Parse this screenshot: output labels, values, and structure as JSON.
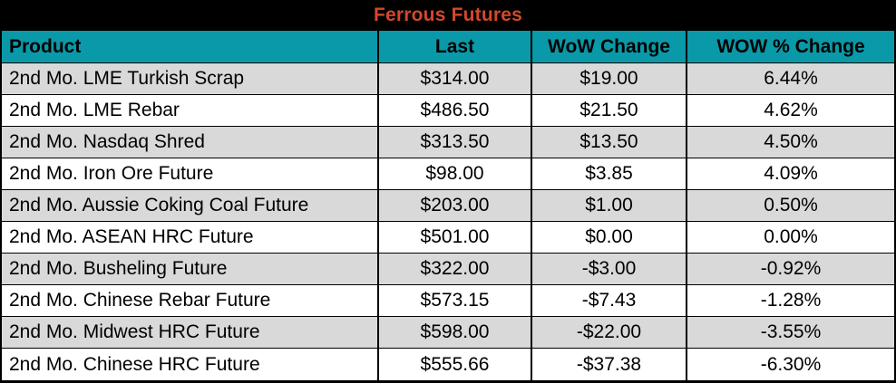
{
  "title": "Ferrous Futures",
  "colors": {
    "title_bar_bg": "#000000",
    "title_text": "#d2492b",
    "header_bg": "#0999a8",
    "row_stripe": "#d9d9d9",
    "row_plain": "#ffffff",
    "border": "#000000"
  },
  "table": {
    "headers": [
      "Product",
      "Last",
      "WoW Change",
      "WOW % Change"
    ],
    "rows": [
      {
        "product": "2nd Mo. LME Turkish Scrap",
        "last": "$314.00",
        "wow_change": "$19.00",
        "wow_pct_change": "6.44%"
      },
      {
        "product": "2nd Mo. LME Rebar",
        "last": "$486.50",
        "wow_change": "$21.50",
        "wow_pct_change": "4.62%"
      },
      {
        "product": "2nd Mo. Nasdaq Shred",
        "last": "$313.50",
        "wow_change": "$13.50",
        "wow_pct_change": "4.50%"
      },
      {
        "product": "2nd Mo. Iron Ore Future",
        "last": "$98.00",
        "wow_change": "$3.85",
        "wow_pct_change": "4.09%"
      },
      {
        "product": "2nd Mo. Aussie Coking Coal Future",
        "last": "$203.00",
        "wow_change": "$1.00",
        "wow_pct_change": "0.50%"
      },
      {
        "product": "2nd Mo. ASEAN HRC Future",
        "last": "$501.00",
        "wow_change": "$0.00",
        "wow_pct_change": "0.00%"
      },
      {
        "product": "2nd Mo. Busheling Future",
        "last": "$322.00",
        "wow_change": "-$3.00",
        "wow_pct_change": "-0.92%"
      },
      {
        "product": "2nd Mo. Chinese Rebar Future",
        "last": "$573.15",
        "wow_change": "-$7.43",
        "wow_pct_change": "-1.28%"
      },
      {
        "product": "2nd Mo. Midwest HRC Future",
        "last": "$598.00",
        "wow_change": "-$22.00",
        "wow_pct_change": "-3.55%"
      },
      {
        "product": "2nd Mo. Chinese HRC Future",
        "last": "$555.66",
        "wow_change": "-$37.38",
        "wow_pct_change": "-6.30%"
      }
    ]
  },
  "chart_data": {
    "type": "table",
    "title": "Ferrous Futures",
    "columns": [
      "Product",
      "Last",
      "WoW Change",
      "WOW % Change"
    ],
    "rows": [
      [
        "2nd Mo. LME Turkish Scrap",
        314.0,
        19.0,
        6.44
      ],
      [
        "2nd Mo. LME Rebar",
        486.5,
        21.5,
        4.62
      ],
      [
        "2nd Mo. Nasdaq Shred",
        313.5,
        13.5,
        4.5
      ],
      [
        "2nd Mo. Iron Ore Future",
        98.0,
        3.85,
        4.09
      ],
      [
        "2nd Mo. Aussie Coking Coal Future",
        203.0,
        1.0,
        0.5
      ],
      [
        "2nd Mo. ASEAN HRC Future",
        501.0,
        0.0,
        0.0
      ],
      [
        "2nd Mo. Busheling Future",
        322.0,
        -3.0,
        -0.92
      ],
      [
        "2nd Mo. Chinese Rebar Future",
        573.15,
        -7.43,
        -1.28
      ],
      [
        "2nd Mo. Midwest HRC Future",
        598.0,
        -22.0,
        -3.55
      ],
      [
        "2nd Mo. Chinese HRC Future",
        555.66,
        -37.38,
        -6.3
      ]
    ],
    "units": {
      "Last": "USD",
      "WoW Change": "USD",
      "WOW % Change": "percent"
    },
    "sorted_by": "WOW % Change descending"
  }
}
